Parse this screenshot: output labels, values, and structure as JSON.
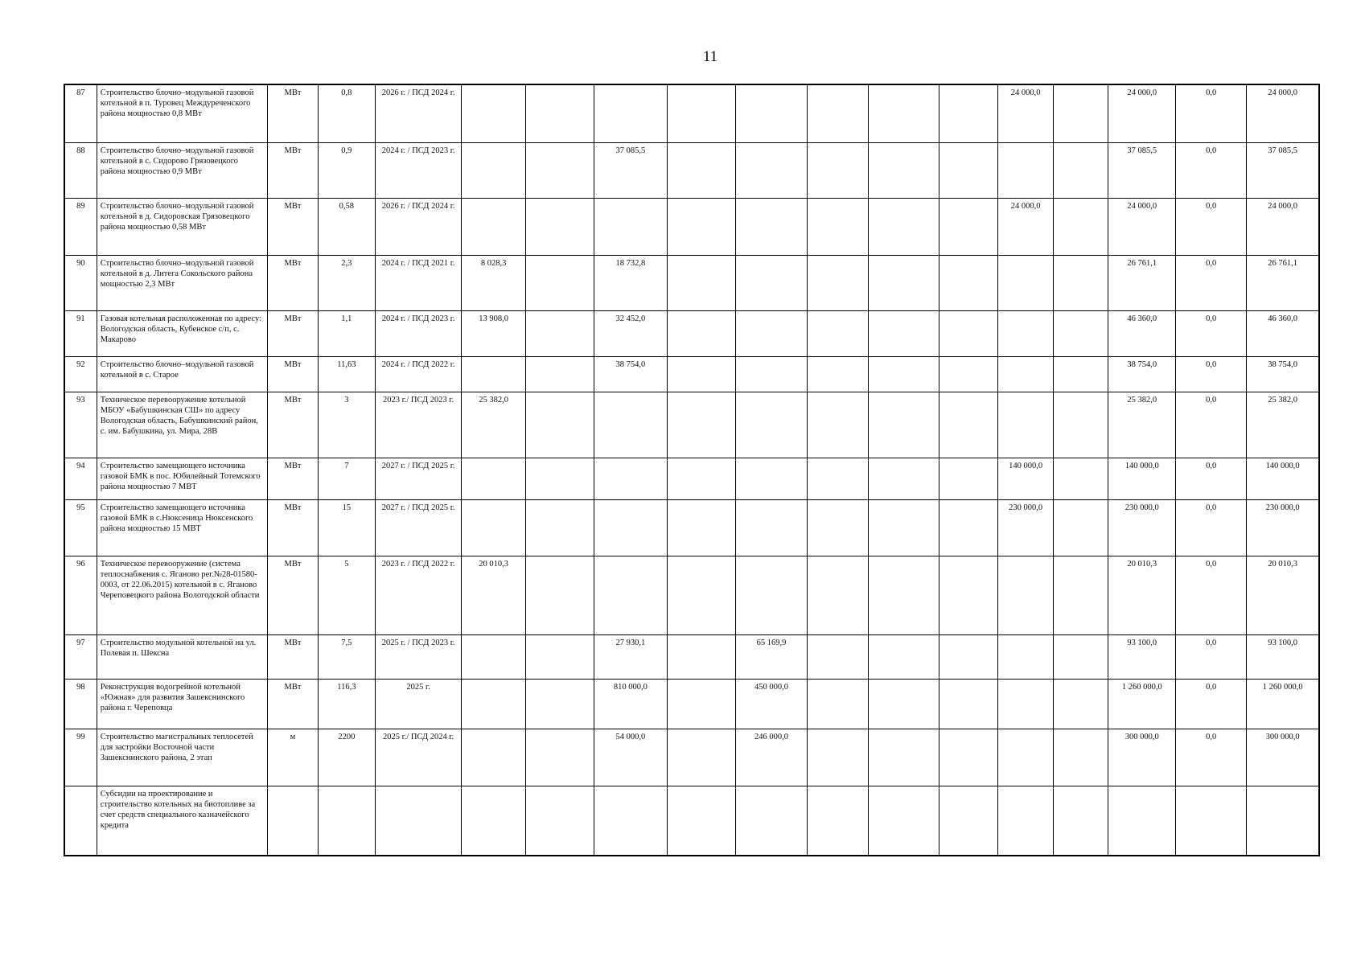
{
  "page_number": "11",
  "table": {
    "rows": [
      [
        "87",
        "Строительство блочно–модульной газовой котельной в п. Туровец Междуреченского района мощностью 0,8 МВт",
        "МВт",
        "0,8",
        "2026 г. / ПСД 2024 г.",
        null,
        null,
        null,
        null,
        null,
        null,
        null,
        null,
        "24 000,0",
        null,
        "24 000,0",
        "0,0",
        "24 000,0"
      ],
      [
        "88",
        "Строительство блочно–модульной газовой котельной в с. Сидорово Грязовецкого района мощностью 0,9 МВт",
        "МВт",
        "0,9",
        "2024 г. / ПСД 2023 г.",
        null,
        null,
        "37 085,5",
        null,
        null,
        null,
        null,
        null,
        null,
        null,
        "37 085,5",
        "0,0",
        "37 085,5"
      ],
      [
        "89",
        "Строительство блочно–модульной газовой котельной в д. Сидоровская Грязовецкого района мощностью 0,58 МВт",
        "МВт",
        "0,58",
        "2026 г. / ПСД 2024 г.",
        null,
        null,
        null,
        null,
        null,
        null,
        null,
        null,
        "24 000,0",
        null,
        "24 000,0",
        "0,0",
        "24 000,0"
      ],
      [
        "90",
        "Строительство блочно–модульной газовой котельной в д. Литега Сокольского района мощностью 2,3 МВт",
        "МВт",
        "2,3",
        "2024 г. / ПСД 2021 г.",
        "8 028,3",
        null,
        "18 732,8",
        null,
        null,
        null,
        null,
        null,
        null,
        null,
        "26 761,1",
        "0,0",
        "26 761,1"
      ],
      [
        "91",
        "Газовая котельная расположенная по адресу: Вологодская область, Кубенское с/п, с. Макарово",
        "МВт",
        "1,1",
        "2024 г. / ПСД 2023 г.",
        "13 908,0",
        null,
        "32 452,0",
        null,
        null,
        null,
        null,
        null,
        null,
        null,
        "46 360,0",
        "0,0",
        "46 360,0"
      ],
      [
        "92",
        "Строительство блочно–модульной газовой котельной в с. Старое",
        "МВт",
        "11,63",
        "2024 г. / ПСД 2022 г.",
        null,
        null,
        "38 754,0",
        null,
        null,
        null,
        null,
        null,
        null,
        null,
        "38 754,0",
        "0,0",
        "38 754,0"
      ],
      [
        "93",
        "Техническое перевооружение котельной МБОУ «Бабушкинская СШ» по адресу Вологодская область, Бабушкинский район, с. им. Бабушкина, ул. Мира, 28В",
        "МВт",
        "3",
        "2023 г./ ПСД 2023 г.",
        "25 382,0",
        null,
        null,
        null,
        null,
        null,
        null,
        null,
        null,
        null,
        "25 382,0",
        "0,0",
        "25 382,0"
      ],
      [
        "94",
        "Строительство замещающего источника газовой БМК в пос. Юбилейный Тотемского района мощностью 7 МВТ",
        "МВт",
        "7",
        "2027 г. / ПСД 2025 г.",
        null,
        null,
        null,
        null,
        null,
        null,
        null,
        null,
        "140 000,0",
        null,
        "140 000,0",
        "0,0",
        "140 000,0"
      ],
      [
        "95",
        "Строительство замещающего источника газовой БМК в с.Нюксеница Нюксенского района мощностью 15 МВТ",
        "МВт",
        "15",
        "2027 г. / ПСД 2025 г.",
        null,
        null,
        null,
        null,
        null,
        null,
        null,
        null,
        "230 000,0",
        null,
        "230 000,0",
        "0,0",
        "230 000,0"
      ],
      [
        "96",
        "Техническое перевооружение (система теплоснабжения с. Яганово рег.№28-01580-0003, от 22.06.2015) котельной в с. Яганово Череповецкого района Вологодской области",
        "МВт",
        "5",
        "2023 г. / ПСД 2022 г.",
        "20 010,3",
        null,
        null,
        null,
        null,
        null,
        null,
        null,
        null,
        null,
        "20 010,3",
        "0,0",
        "20 010,3"
      ],
      [
        "97",
        "Строительство модульной котельной на ул. Полевая п. Шексна",
        "МВт",
        "7,5",
        "2025 г. / ПСД 2023 г.",
        null,
        null,
        "27 930,1",
        null,
        "65 169,9",
        null,
        null,
        null,
        null,
        null,
        "93 100,0",
        "0,0",
        "93 100,0"
      ],
      [
        "98",
        "Реконструкция водогрейной котельной «Южная» для развития Зашекснинского района г. Череповца",
        "МВт",
        "116,3",
        "2025 г.",
        null,
        null,
        "810 000,0",
        null,
        "450 000,0",
        null,
        null,
        null,
        null,
        null,
        "1 260 000,0",
        "0,0",
        "1 260 000,0"
      ],
      [
        "99",
        "Строительство магистральных теплосетей для застройки Восточной части Зашекснинского района, 2 этап",
        "м",
        "2200",
        "2025 г./ ПСД 2024 г.",
        null,
        null,
        "54 000,0",
        null,
        "246 000,0",
        null,
        null,
        null,
        null,
        null,
        "300 000,0",
        "0,0",
        "300 000,0"
      ],
      [
        null,
        "Субсидии на проектирование и строительство котельных на биотопливе за счет средств специального казначейского кредита",
        null,
        null,
        null,
        null,
        null,
        null,
        null,
        null,
        null,
        null,
        null,
        null,
        null,
        null,
        null,
        null
      ]
    ]
  }
}
